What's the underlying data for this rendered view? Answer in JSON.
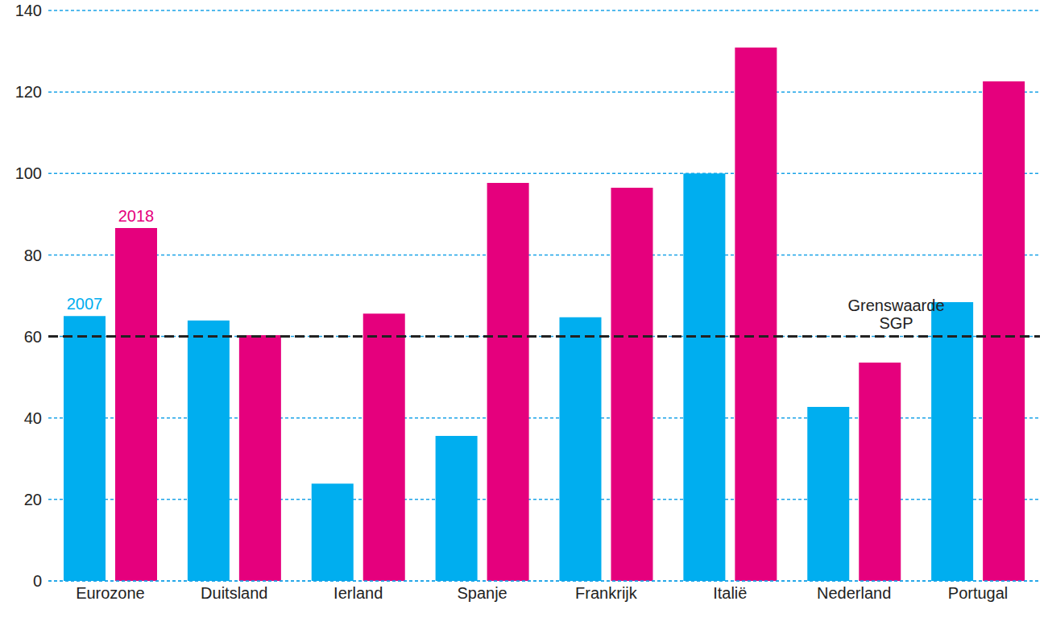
{
  "chart_data": {
    "type": "bar",
    "categories": [
      "Eurozone",
      "Duitsland",
      "Ierland",
      "Spanje",
      "Frankrijk",
      "Italië",
      "Nederland",
      "Portugal"
    ],
    "series": [
      {
        "name": "2007",
        "color": "#00aeef",
        "values": [
          65,
          63.9,
          23.9,
          35.6,
          64.7,
          100,
          42.7,
          68.4
        ]
      },
      {
        "name": "2018",
        "color": "#e5007d",
        "values": [
          86.6,
          60.3,
          65.6,
          97.7,
          96.5,
          130.9,
          53.6,
          122.6
        ]
      }
    ],
    "ylim": [
      0,
      140
    ],
    "yticks": [
      0,
      20,
      40,
      60,
      80,
      100,
      120,
      140
    ],
    "grid": true,
    "reference_lines": [
      {
        "y": 60,
        "label": "Grenswaarde SGP",
        "color": "#222222",
        "line_style": "dashed"
      }
    ]
  }
}
